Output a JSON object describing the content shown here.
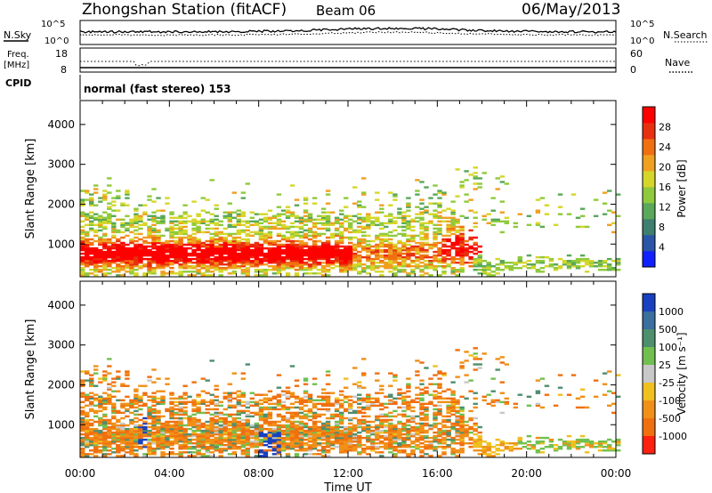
{
  "header": {
    "station": "Zhongshan Station (fitACF)",
    "beam": "Beam 06",
    "date": "06/May/2013"
  },
  "noise_panel": {
    "left_label": "N.Sky",
    "right_label": "N.Search",
    "ticks_left": [
      "10^5",
      "10^0"
    ],
    "ticks_right": [
      "10^5",
      "10^0"
    ]
  },
  "freq_panel": {
    "left_label_line1": "Freq.",
    "left_label_line2": "[MHz]",
    "right_label": "Nave",
    "ticks_left": [
      "18",
      "8"
    ],
    "ticks_right": [
      "60",
      "0"
    ]
  },
  "cpid": {
    "label": "CPID",
    "value": "normal (fast stereo) 153"
  },
  "chart_data": [
    {
      "type": "heatmap",
      "name": "power",
      "ylabel": "Slant Range [km]",
      "yticks": [
        "1000",
        "2000",
        "3000",
        "4000"
      ],
      "ylim": [
        180,
        4600
      ],
      "x_range_hours": [
        0,
        24
      ],
      "colorbar": {
        "label": "Power [dB]",
        "ticks": [
          "4",
          "8",
          "12",
          "16",
          "20",
          "24",
          "28"
        ],
        "range": [
          0,
          30
        ],
        "colors": [
          "#1020ff",
          "#2a55a8",
          "#3e7f6e",
          "#5aa85a",
          "#8fca3c",
          "#d6d62a",
          "#f0a020",
          "#f07010",
          "#e83010",
          "#ff0000"
        ]
      }
    },
    {
      "type": "heatmap",
      "name": "velocity",
      "ylabel": "Slant Range [km]",
      "yticks": [
        "1000",
        "2000",
        "3000",
        "4000"
      ],
      "ylim": [
        180,
        4600
      ],
      "x_range_hours": [
        0,
        24
      ],
      "colorbar": {
        "label": "Velocity [m s⁻¹]",
        "ticks": [
          "1000",
          "500",
          "100",
          "25",
          "-25",
          "-100",
          "-500",
          "-1000"
        ],
        "colors": [
          "#1840c0",
          "#3a6f9e",
          "#4e8f6e",
          "#70c050",
          "#c8c8c8",
          "#f0c020",
          "#f09018",
          "#f07010",
          "#ff2010"
        ]
      }
    }
  ],
  "x_axis": {
    "ticks": [
      "00:00",
      "04:00",
      "08:00",
      "12:00",
      "16:00",
      "20:00",
      "00:00"
    ],
    "label": "Time UT"
  }
}
